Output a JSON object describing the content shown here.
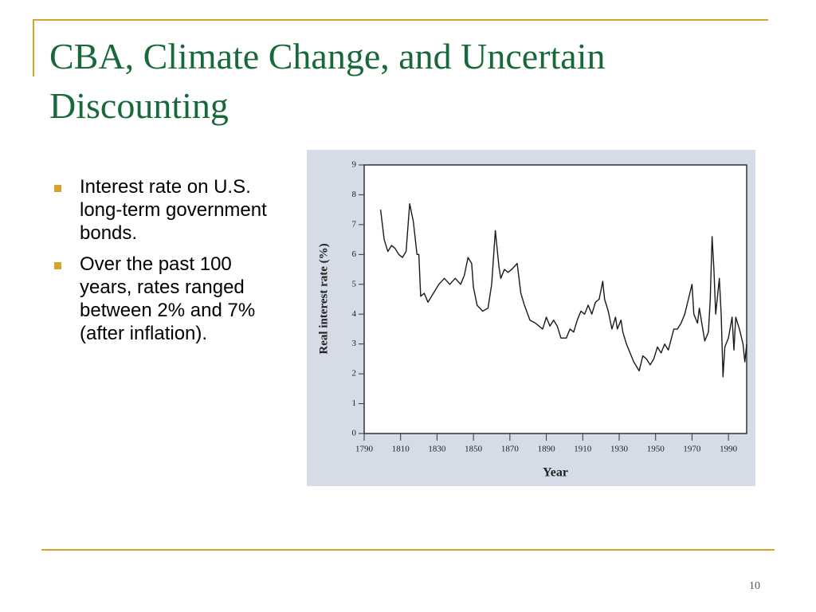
{
  "slide": {
    "title": "CBA, Climate Change, and Uncertain Discounting",
    "bullets": [
      "Interest rate on U.S. long-term government bonds.",
      "Over the past 100 years, rates ranged between 2% and 7% (after inflation)."
    ],
    "page_number": "10"
  },
  "chart_data": {
    "type": "line",
    "x_label": "Year",
    "y_label": "Real interest rate (%)",
    "xlim": [
      1790,
      2000
    ],
    "ylim": [
      0,
      9
    ],
    "xticks": [
      1790,
      1810,
      1830,
      1850,
      1870,
      1890,
      1910,
      1930,
      1950,
      1970,
      1990
    ],
    "yticks": [
      0,
      1,
      2,
      3,
      4,
      5,
      6,
      7,
      8,
      9
    ],
    "series": [
      {
        "color": "#1a1a1a",
        "x": [
          1799,
          1801,
          1803,
          1805,
          1807,
          1809,
          1811,
          1813,
          1815,
          1817,
          1819,
          1820,
          1821,
          1823,
          1825,
          1828,
          1831,
          1834,
          1837,
          1840,
          1843,
          1845,
          1847,
          1849,
          1850,
          1852,
          1855,
          1858,
          1860,
          1862,
          1864,
          1865,
          1867,
          1869,
          1871,
          1874,
          1876,
          1878,
          1881,
          1884,
          1886,
          1888,
          1890,
          1892,
          1894,
          1896,
          1898,
          1901,
          1903,
          1905,
          1907,
          1909,
          1911,
          1913,
          1915,
          1917,
          1919,
          1921,
          1922,
          1924,
          1926,
          1928,
          1929,
          1931,
          1932,
          1934,
          1936,
          1938,
          1941,
          1943,
          1945,
          1947,
          1949,
          1951,
          1953,
          1955,
          1957,
          1960,
          1962,
          1964,
          1966,
          1970,
          1971,
          1973,
          1974,
          1977,
          1979,
          1980,
          1981,
          1982,
          1983,
          1985,
          1986,
          1987,
          1988,
          1990,
          1992,
          1993,
          1994,
          1996,
          1998,
          1999,
          2000
        ],
        "values": [
          7.5,
          6.5,
          6.1,
          6.3,
          6.2,
          6.0,
          5.9,
          6.1,
          7.7,
          7.1,
          6.0,
          6.0,
          4.6,
          4.7,
          4.4,
          4.7,
          5.0,
          5.2,
          5.0,
          5.2,
          5.0,
          5.3,
          5.9,
          5.7,
          4.9,
          4.3,
          4.1,
          4.2,
          5.0,
          6.8,
          5.6,
          5.2,
          5.5,
          5.4,
          5.5,
          5.7,
          4.7,
          4.3,
          3.8,
          3.7,
          3.6,
          3.5,
          3.9,
          3.6,
          3.8,
          3.6,
          3.2,
          3.2,
          3.5,
          3.4,
          3.8,
          4.1,
          4.0,
          4.3,
          4.0,
          4.4,
          4.5,
          5.1,
          4.5,
          4.1,
          3.5,
          3.9,
          3.5,
          3.8,
          3.4,
          3.0,
          2.7,
          2.4,
          2.1,
          2.6,
          2.5,
          2.3,
          2.5,
          2.9,
          2.7,
          3.0,
          2.8,
          3.5,
          3.5,
          3.7,
          4.0,
          5.0,
          4.0,
          3.7,
          4.2,
          3.1,
          3.4,
          4.5,
          6.6,
          5.5,
          4.0,
          5.2,
          4.0,
          1.9,
          2.9,
          3.2,
          3.9,
          2.8,
          3.9,
          3.5,
          3.0,
          2.4,
          3.0
        ]
      }
    ]
  }
}
